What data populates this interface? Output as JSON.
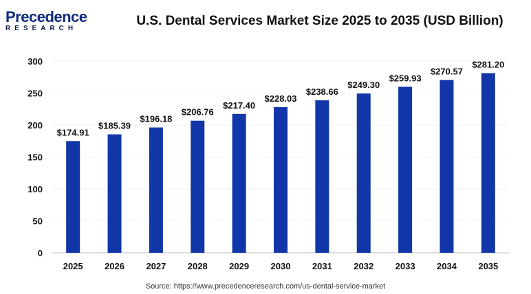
{
  "logo": {
    "line1": "Precedence",
    "line2": "RESEARCH"
  },
  "chart_data": {
    "type": "bar",
    "title": "U.S. Dental Services Market Size 2025 to 2035 (USD Billion)",
    "categories": [
      "2025",
      "2026",
      "2027",
      "2028",
      "2029",
      "2030",
      "2031",
      "2032",
      "2033",
      "2034",
      "2035"
    ],
    "values": [
      174.91,
      185.39,
      196.18,
      206.76,
      217.4,
      228.03,
      238.66,
      249.3,
      259.93,
      270.57,
      281.2
    ],
    "data_labels": [
      "$174.91",
      "$185.39",
      "$196.18",
      "$206.76",
      "$217.40",
      "$228.03",
      "$238.66",
      "$249.30",
      "$259.93",
      "$270.57",
      "$281.20"
    ],
    "yticks": [
      "0",
      "50",
      "100",
      "150",
      "200",
      "250",
      "300"
    ],
    "ylim": [
      0,
      300
    ],
    "grid": true,
    "bar_color": "#1036a8",
    "xlabel": "",
    "ylabel": ""
  },
  "source": "Source: https://www.precedenceresearch.com/us-dental-service-market"
}
